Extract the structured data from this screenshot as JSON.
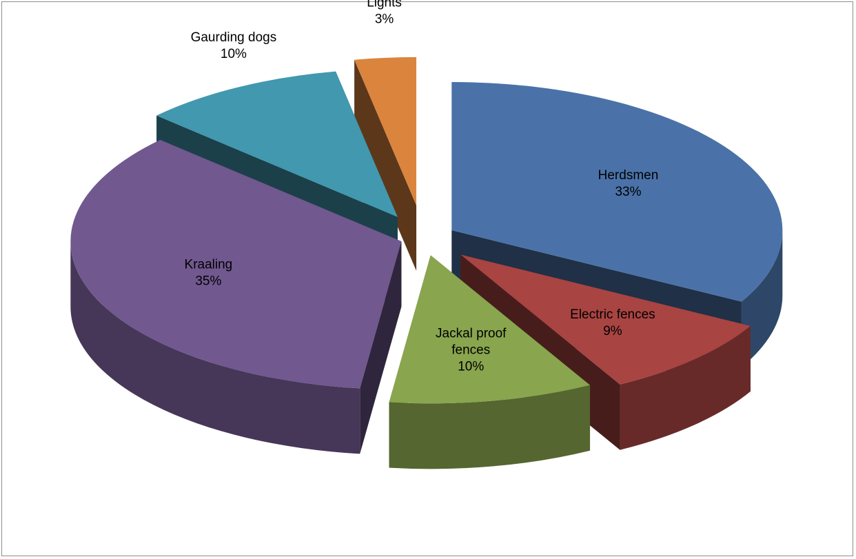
{
  "chart_data": {
    "type": "pie",
    "title": "",
    "exploded": true,
    "three_d": true,
    "slices": [
      {
        "label": "Herdsmen",
        "value": 33,
        "pct_label": "33%",
        "color": "#4A72A8"
      },
      {
        "label": "Electric fences",
        "value": 9,
        "pct_label": "9%",
        "color": "#A84442"
      },
      {
        "label": "Jackal proof fences",
        "value": 10,
        "pct_label": "10%",
        "color": "#89A54E",
        "label_lines": [
          "Jackal proof",
          "fences"
        ]
      },
      {
        "label": "Kraaling",
        "value": 35,
        "pct_label": "35%",
        "color": "#71588F"
      },
      {
        "label": "Gaurding dogs",
        "value": 10,
        "pct_label": "10%",
        "color": "#4198AF"
      },
      {
        "label": "Lights",
        "value": 3,
        "pct_label": "3%",
        "color": "#DB843D"
      }
    ]
  }
}
